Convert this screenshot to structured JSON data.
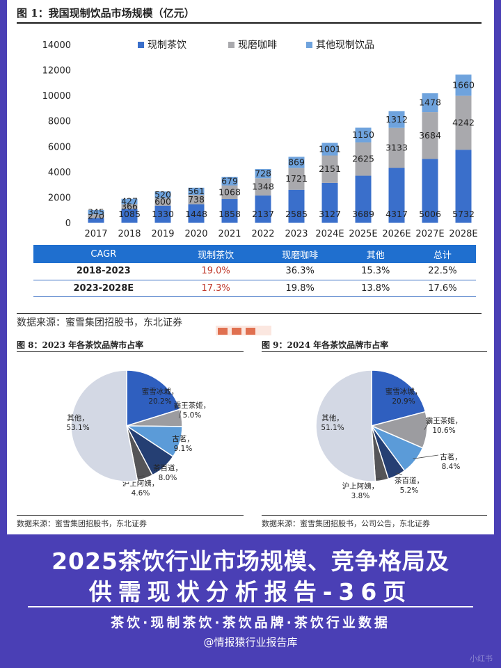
{
  "fig1": {
    "title": "图 1：我国现制饮品市场规模（亿元）",
    "source": "数据来源：蜜雪集团招股书，东北证券"
  },
  "fig8": {
    "title": "图 8：2023 年各茶饮品牌市占率",
    "source": "数据来源：蜜雪集团招股书，东北证券"
  },
  "fig9": {
    "title": "图 9：2024 年各茶饮品牌市占率",
    "source": "数据来源：蜜雪集团招股书，公司公告，东北证券"
  },
  "cagr_table": {
    "headers": [
      "CAGR",
      "现制茶饮",
      "现磨咖啡",
      "其他",
      "总计"
    ],
    "rows": [
      [
        "2018-2023",
        "19.0%",
        "36.3%",
        "15.3%",
        "22.5%"
      ],
      [
        "2023-2028E",
        "17.3%",
        "19.8%",
        "13.8%",
        "17.6%"
      ]
    ]
  },
  "chart_data": [
    {
      "type": "bar",
      "stacked": true,
      "title": "我国现制饮品市场规模（亿元）",
      "categories": [
        "2017",
        "2018",
        "2019",
        "2020",
        "2021",
        "2022",
        "2023",
        "2024E",
        "2025E",
        "2026E",
        "2027E",
        "2028E"
      ],
      "series": [
        {
          "name": "现制茶饮",
          "color": "#3a6fcb",
          "values": [
            373,
            1085,
            1330,
            1448,
            1858,
            2137,
            2585,
            3127,
            3689,
            4317,
            5006,
            5732
          ]
        },
        {
          "name": "现磨咖啡",
          "color": "#a9a9ad",
          "values": [
            270,
            366,
            600,
            738,
            1068,
            1348,
            1721,
            2151,
            2625,
            3133,
            3684,
            4242
          ]
        },
        {
          "name": "其他现制饮品",
          "color": "#6fa3dd",
          "values": [
            345,
            427,
            520,
            561,
            679,
            728,
            869,
            1001,
            1150,
            1312,
            1478,
            1660
          ]
        }
      ],
      "yticks": [
        "0",
        "2000",
        "4000",
        "6000",
        "8000",
        "10000",
        "12000",
        "14000"
      ],
      "ylim": [
        0,
        14000
      ]
    },
    {
      "type": "pie",
      "title": "2023 年各茶饮品牌市占率",
      "slices": [
        {
          "name": "蜜雪冰城",
          "value": 20.2,
          "label": "20.2%",
          "color": "#2f5fbf"
        },
        {
          "name": "霸王茶姬",
          "value": 5.0,
          "label": "5.0%",
          "color": "#9c9ca0"
        },
        {
          "name": "古茗",
          "value": 9.1,
          "label": "9.1%",
          "color": "#5b9bd8"
        },
        {
          "name": "茶百道",
          "value": 8.0,
          "label": "8.0%",
          "color": "#253f73"
        },
        {
          "name": "沪上阿姨",
          "value": 4.6,
          "label": "4.6%",
          "color": "#555558"
        },
        {
          "name": "其他",
          "value": 53.1,
          "label": "53.1%",
          "color": "#d3d8e4"
        }
      ]
    },
    {
      "type": "pie",
      "title": "2024 年各茶饮品牌市占率",
      "slices": [
        {
          "name": "蜜雪冰城",
          "value": 20.9,
          "label": "20.9%",
          "color": "#2f5fbf"
        },
        {
          "name": "霸王茶姬",
          "value": 10.6,
          "label": "10.6%",
          "color": "#9c9ca0"
        },
        {
          "name": "古茗",
          "value": 8.4,
          "label": "8.4%",
          "color": "#5b9bd8"
        },
        {
          "name": "茶百道",
          "value": 5.2,
          "label": "5.2%",
          "color": "#253f73"
        },
        {
          "name": "沪上阿姨",
          "value": 3.8,
          "label": "3.8%",
          "color": "#555558"
        },
        {
          "name": "其他",
          "value": 51.1,
          "label": "51.1%",
          "color": "#d3d8e4"
        }
      ]
    }
  ],
  "banner": {
    "line1": "2025茶饮行业市场规模、竞争格局及",
    "line2": "供需现状分析报告-36页",
    "tags": "茶饮·现制茶饮·茶饮品牌·茶饮行业数据",
    "handle": "@情报猿行业报告库",
    "watermark": "小红书"
  }
}
